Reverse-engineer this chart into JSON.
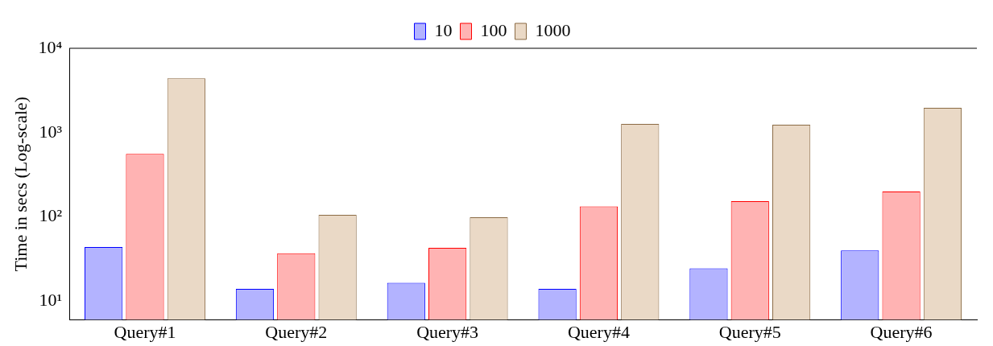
{
  "chart_data": {
    "type": "bar",
    "ylabel": "Time in secs (Log-scale)",
    "log": "y",
    "categories": [
      "Query#1",
      "Query#2",
      "Query#3",
      "Query#4",
      "Query#5",
      "Query#6"
    ],
    "series": [
      {
        "name": "10",
        "color": "#b3b3ff",
        "values": [
          44,
          14,
          16.5,
          14,
          24.5,
          40
        ]
      },
      {
        "name": "100",
        "color": "#ffb3b3",
        "values": [
          560,
          37,
          43,
          133,
          154,
          200
        ]
      },
      {
        "name": "1000",
        "color": "#ead9c6",
        "values": [
          4400,
          106,
          99,
          1270,
          1240,
          1970
        ]
      }
    ],
    "ylim": [
      6,
      10000
    ],
    "yticks": [
      {
        "value": 10,
        "label": "10¹"
      },
      {
        "value": 100,
        "label": "10²"
      },
      {
        "value": 1000,
        "label": "10³"
      },
      {
        "value": 10000,
        "label": "10⁴"
      }
    ],
    "legend": "top",
    "grid": false
  }
}
